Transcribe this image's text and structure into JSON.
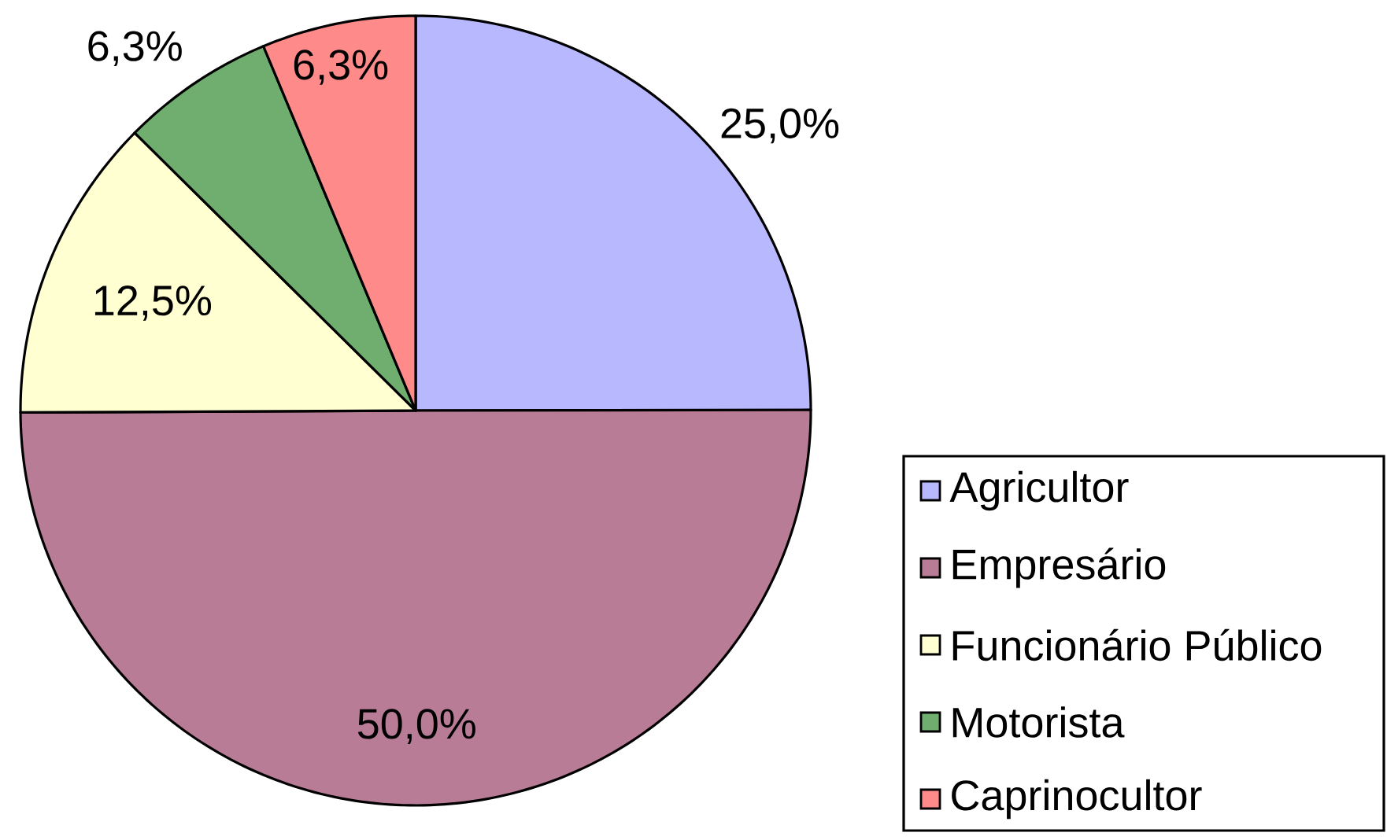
{
  "chart_data": {
    "type": "pie",
    "categories": [
      "Agricultor",
      "Empresário",
      "Funcionário Público",
      "Motorista",
      "Caprinocultor"
    ],
    "values": [
      25.0,
      50.0,
      12.5,
      6.3,
      6.3
    ],
    "value_labels": [
      "25,0%",
      "50,0%",
      "12,5%",
      "6,3%",
      "6,3%"
    ],
    "colors": [
      "#b8b8ff",
      "#b97c97",
      "#ffffd2",
      "#6fae6f",
      "#ff8a8a"
    ],
    "legend": "right"
  }
}
